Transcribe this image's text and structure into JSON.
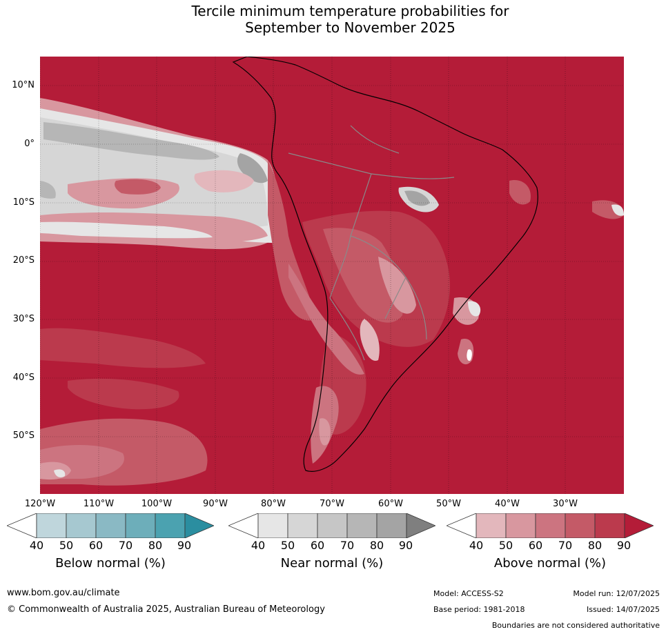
{
  "title": {
    "line1": "Tercile minimum temperature probabilities for",
    "line2": "September to November 2025"
  },
  "map": {
    "lat_labels": [
      "10°N",
      "0°",
      "10°S",
      "20°S",
      "30°S",
      "40°S",
      "50°S"
    ],
    "lon_labels": [
      "120°W",
      "110°W",
      "100°W",
      "90°W",
      "80°W",
      "70°W",
      "60°W",
      "50°W",
      "40°W",
      "30°W"
    ],
    "gridlines": "dotted",
    "features": [
      "coastlines",
      "country boundaries"
    ]
  },
  "colorbars": [
    {
      "title": "Below normal (%)",
      "ticks": [
        "40",
        "50",
        "60",
        "70",
        "80",
        "90"
      ],
      "colors": [
        "#ffffff",
        "#bfd6dc",
        "#a6c8d0",
        "#8ab9c4",
        "#6daeba",
        "#4ba2b0",
        "#2b8ea0"
      ]
    },
    {
      "title": "Near normal (%)",
      "ticks": [
        "40",
        "50",
        "60",
        "70",
        "80",
        "90"
      ],
      "colors": [
        "#ffffff",
        "#e6e6e6",
        "#d6d6d6",
        "#c6c6c6",
        "#b6b6b6",
        "#a4a4a4",
        "#7f7f7f"
      ]
    },
    {
      "title": "Above normal (%)",
      "ticks": [
        "40",
        "50",
        "60",
        "70",
        "80",
        "90"
      ],
      "colors": [
        "#ffffff",
        "#e3b7bc",
        "#d8979f",
        "#cc7480",
        "#c45a67",
        "#bb3a4d",
        "#b41c38"
      ]
    }
  ],
  "footer": {
    "website": "www.bom.gov.au/climate",
    "copyright": "© Commonwealth of Australia 2025, Australian Bureau of Meteorology",
    "model": "Model: ACCESS-S2",
    "base_period": "Base period: 1981-2018",
    "model_run": "Model run: 12/07/2025",
    "issued": "Issued: 14/07/2025",
    "disclaimer": "Boundaries are not considered authoritative"
  }
}
